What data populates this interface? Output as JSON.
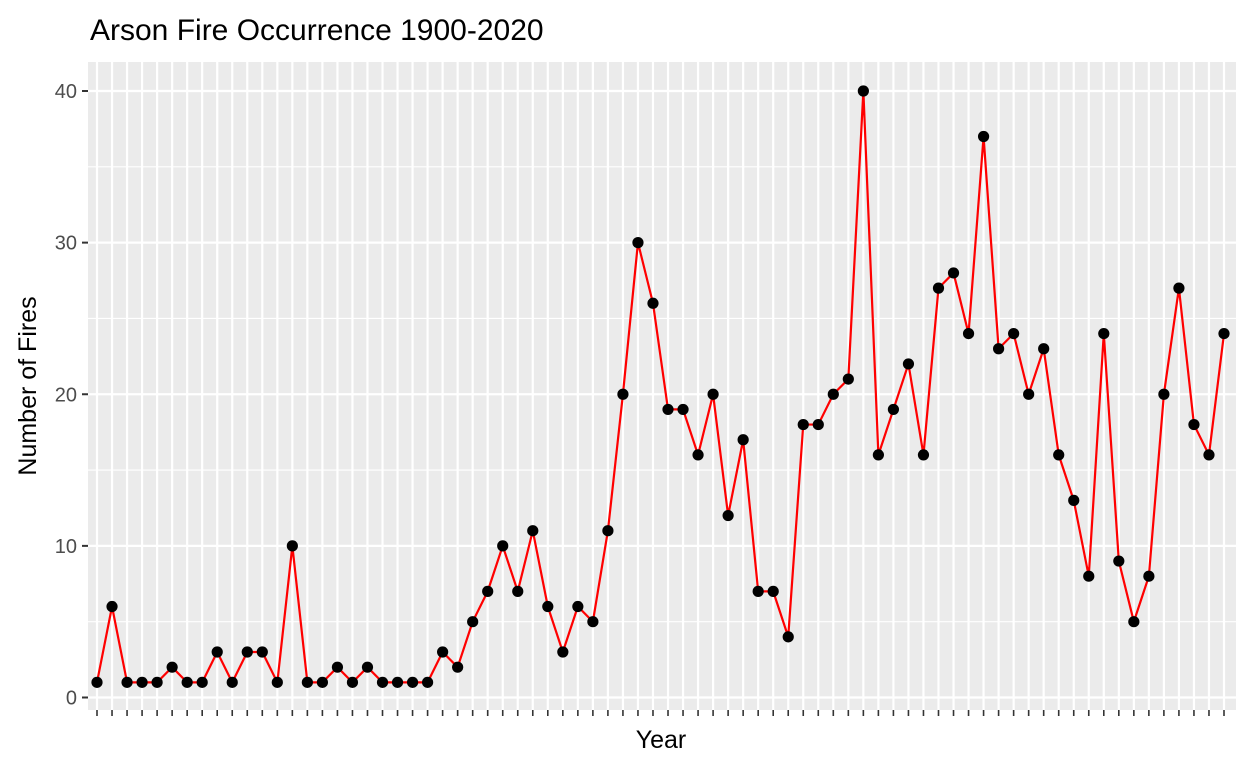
{
  "chart_data": {
    "type": "line",
    "title": "Arson Fire Occurrence 1900-2020",
    "xlabel": "Year",
    "ylabel": "Number of Fires",
    "ylim": [
      0,
      40
    ],
    "yticks": [
      "0",
      "10",
      "20",
      "30",
      "40"
    ],
    "grid": true,
    "legend": "none",
    "series": [
      {
        "values": [
          1,
          6,
          1,
          1,
          1,
          2,
          1,
          1,
          3,
          1,
          3,
          3,
          1,
          10,
          1,
          1,
          2,
          1,
          2,
          1,
          1,
          1,
          1,
          3,
          2,
          5,
          7,
          10,
          7,
          11,
          6,
          3,
          6,
          5,
          11,
          20,
          30,
          26,
          19,
          19,
          16,
          20,
          12,
          17,
          7,
          7,
          4,
          18,
          18,
          20,
          21,
          40,
          16,
          19,
          22,
          16,
          27,
          28,
          24,
          37,
          23,
          24,
          20,
          23,
          16,
          13,
          8,
          24,
          9,
          5,
          8,
          20,
          27,
          18,
          16,
          24
        ]
      }
    ],
    "colors": {
      "line": "#ff0000",
      "point": "#000000",
      "panel": "#ebebeb",
      "grid": "#ffffff"
    }
  }
}
